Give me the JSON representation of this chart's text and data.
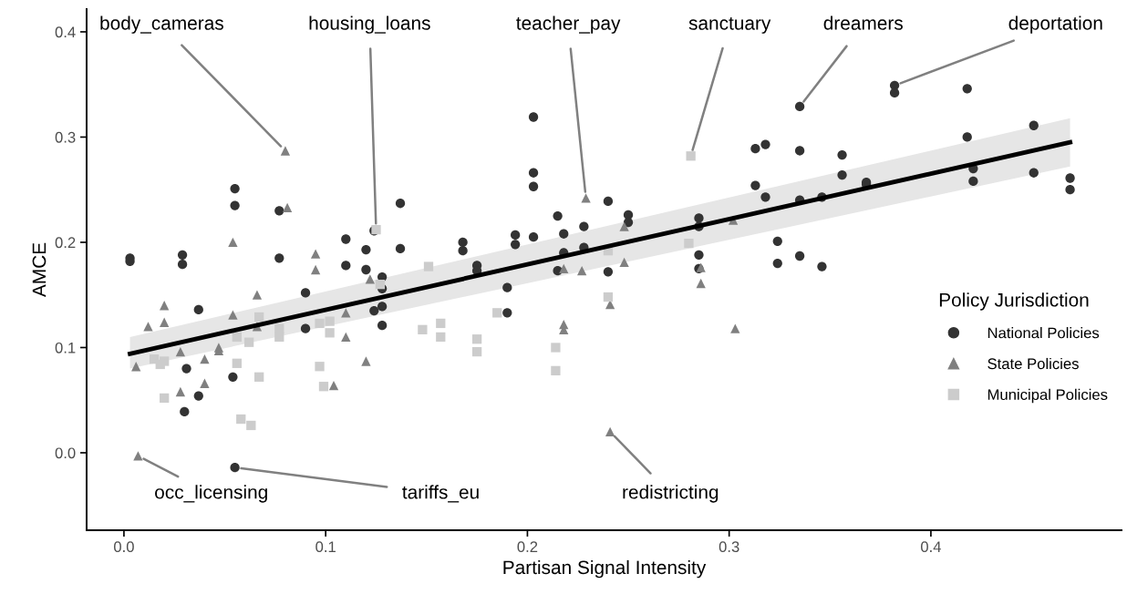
{
  "chart_data": {
    "type": "scatter",
    "xlabel": "Partisan Signal Intensity",
    "ylabel": "AMCE",
    "legend_title": "Policy Jurisdiction",
    "legend": "right",
    "grid": false,
    "xlim": [
      -0.0185,
      0.4945
    ],
    "ylim": [
      -0.0736,
      0.4216
    ],
    "xticks": [
      {
        "value": 0,
        "label": "0.0"
      },
      0.1,
      0.2,
      0.3,
      0.4
    ],
    "yticks": [
      {
        "value": 0,
        "label": "0.0"
      },
      0.1,
      0.2,
      0.3,
      0.4
    ],
    "series": [
      {
        "name": "National Policies",
        "color": "#333333",
        "marker": "circle",
        "x": [
          0.003,
          0.003,
          0.029,
          0.029,
          0.031,
          0.03,
          0.037,
          0.037,
          0.055,
          0.055,
          0.054,
          0.055,
          0.077,
          0.077,
          0.09,
          0.09,
          0.11,
          0.11,
          0.12,
          0.12,
          0.124,
          0.124,
          0.128,
          0.128,
          0.128,
          0.128,
          0.137,
          0.137,
          0.168,
          0.168,
          0.175,
          0.175,
          0.19,
          0.19,
          0.194,
          0.194,
          0.203,
          0.203,
          0.203,
          0.203,
          0.215,
          0.215,
          0.218,
          0.218,
          0.228,
          0.228,
          0.24,
          0.24,
          0.25,
          0.25,
          0.285,
          0.285,
          0.285,
          0.285,
          0.313,
          0.313,
          0.318,
          0.318,
          0.324,
          0.324,
          0.335,
          0.335,
          0.335,
          0.335,
          0.346,
          0.346,
          0.356,
          0.356,
          0.368,
          0.368,
          0.382,
          0.382,
          0.418,
          0.418,
          0.421,
          0.421,
          0.451,
          0.451,
          0.469,
          0.469
        ],
        "values": [
          0.185,
          0.182,
          0.188,
          0.179,
          0.08,
          0.039,
          0.054,
          0.136,
          0.251,
          0.235,
          0.072,
          -0.014,
          0.23,
          0.185,
          0.152,
          0.118,
          0.203,
          0.178,
          0.193,
          0.174,
          0.211,
          0.135,
          0.167,
          0.156,
          0.139,
          0.121,
          0.237,
          0.194,
          0.2,
          0.192,
          0.178,
          0.173,
          0.157,
          0.133,
          0.207,
          0.198,
          0.319,
          0.266,
          0.253,
          0.205,
          0.225,
          0.173,
          0.208,
          0.19,
          0.215,
          0.195,
          0.239,
          0.172,
          0.226,
          0.219,
          0.223,
          0.215,
          0.188,
          0.175,
          0.289,
          0.254,
          0.293,
          0.243,
          0.201,
          0.18,
          0.329,
          0.287,
          0.24,
          0.187,
          0.243,
          0.177,
          0.283,
          0.264,
          0.257,
          0.255,
          0.349,
          0.342,
          0.346,
          0.3,
          0.27,
          0.258,
          0.311,
          0.266,
          0.261,
          0.25
        ]
      },
      {
        "name": "State Policies",
        "color": "#808080",
        "marker": "triangle",
        "x": [
          0.007,
          0.006,
          0.012,
          0.02,
          0.02,
          0.028,
          0.028,
          0.04,
          0.04,
          0.047,
          0.047,
          0.054,
          0.054,
          0.066,
          0.066,
          0.08,
          0.081,
          0.095,
          0.095,
          0.104,
          0.11,
          0.11,
          0.12,
          0.122,
          0.229,
          0.218,
          0.218,
          0.218,
          0.227,
          0.241,
          0.241,
          0.248,
          0.248,
          0.286,
          0.286,
          0.302,
          0.303
        ],
        "values": [
          -0.003,
          0.082,
          0.12,
          0.14,
          0.124,
          0.096,
          0.058,
          0.089,
          0.066,
          0.1,
          0.097,
          0.2,
          0.131,
          0.15,
          0.12,
          0.287,
          0.233,
          0.189,
          0.174,
          0.064,
          0.133,
          0.11,
          0.087,
          0.165,
          0.242,
          0.175,
          0.122,
          0.117,
          0.173,
          0.141,
          0.02,
          0.215,
          0.181,
          0.176,
          0.161,
          0.221,
          0.118
        ]
      },
      {
        "name": "Municipal Policies",
        "color": "#cccccc",
        "marker": "square",
        "x": [
          0.015,
          0.02,
          0.02,
          0.018,
          0.056,
          0.056,
          0.058,
          0.063,
          0.067,
          0.067,
          0.062,
          0.077,
          0.077,
          0.097,
          0.097,
          0.099,
          0.102,
          0.102,
          0.125,
          0.127,
          0.151,
          0.148,
          0.157,
          0.157,
          0.175,
          0.175,
          0.185,
          0.214,
          0.214,
          0.24,
          0.24,
          0.281,
          0.28
        ],
        "values": [
          0.089,
          0.087,
          0.052,
          0.084,
          0.11,
          0.085,
          0.032,
          0.026,
          0.129,
          0.072,
          0.105,
          0.118,
          0.11,
          0.123,
          0.082,
          0.063,
          0.125,
          0.114,
          0.212,
          0.16,
          0.177,
          0.117,
          0.123,
          0.11,
          0.108,
          0.096,
          0.133,
          0.1,
          0.078,
          0.192,
          0.148,
          0.282,
          0.199
        ]
      },
      {
        "type": "line",
        "color": "#000000",
        "x": [
          0.003,
          0.469
        ],
        "values": [
          0.094,
          0.295
        ],
        "lower": [
          0.08,
          0.272
        ],
        "upper": [
          0.11,
          0.318
        ]
      }
    ],
    "annotations": [
      {
        "text": "body_cameras",
        "x": 0.08,
        "y": 0.287
      },
      {
        "text": "housing_loans",
        "x": 0.125,
        "y": 0.212
      },
      {
        "text": "teacher_pay",
        "x": 0.229,
        "y": 0.242
      },
      {
        "text": "sanctuary",
        "x": 0.281,
        "y": 0.282
      },
      {
        "text": "dreamers",
        "x": 0.335,
        "y": 0.329
      },
      {
        "text": "deportation",
        "x": 0.382,
        "y": 0.349
      },
      {
        "text": "occ_licensing",
        "x": 0.007,
        "y": -0.003
      },
      {
        "text": "tariffs_eu",
        "x": 0.055,
        "y": -0.014
      },
      {
        "text": "redistricting",
        "x": 0.241,
        "y": 0.02
      }
    ]
  }
}
